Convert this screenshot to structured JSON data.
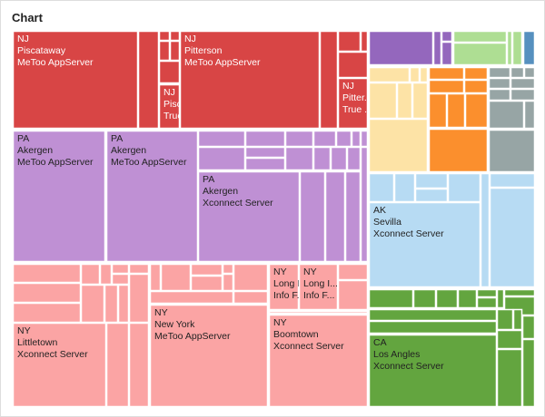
{
  "chart_data": {
    "type": "treemap",
    "title": "Chart",
    "colors": {
      "NJ": "#d84545",
      "PA": "#bf90d4",
      "NY": "#fba4a4",
      "AK": "#b7dbf3",
      "CA": "#63a53f",
      "purple": "#9467bd",
      "lightgreen": "#aede93",
      "blue": "#5690bf",
      "yellow": "#fde3a6",
      "orange": "#fb8f2d",
      "gray": "#97a5a5"
    },
    "labeled_nodes": [
      {
        "state": "NJ",
        "city": "Piscataway",
        "server": "MeToo AppServer"
      },
      {
        "state": "NJ",
        "city": "Piscat...",
        "server": "True A..."
      },
      {
        "state": "NJ",
        "city": "Pitterson",
        "server": "MeToo AppServer"
      },
      {
        "state": "NJ",
        "city": "Pitter...",
        "server": "True ..."
      },
      {
        "state": "PA",
        "city": "Akergen",
        "server": "MeToo AppServer"
      },
      {
        "state": "PA",
        "city": "Akergen",
        "server": "MeToo AppServer"
      },
      {
        "state": "PA",
        "city": "Akergen",
        "server": "Xconnect Server"
      },
      {
        "state": "NY",
        "city": "Littletown",
        "server": "Xconnect Server"
      },
      {
        "state": "NY",
        "city": "New York",
        "server": "MeToo AppServer"
      },
      {
        "state": "NY",
        "city": "Long I...",
        "server": "Info F..."
      },
      {
        "state": "NY",
        "city": "Long I...",
        "server": "Info F..."
      },
      {
        "state": "NY",
        "city": "Boomtown",
        "server": "Xconnect Server"
      },
      {
        "state": "AK",
        "city": "Sevilla",
        "server": "Xconnect Server"
      },
      {
        "state": "CA",
        "city": "Los Angles",
        "server": "Xconnect Server"
      }
    ]
  }
}
